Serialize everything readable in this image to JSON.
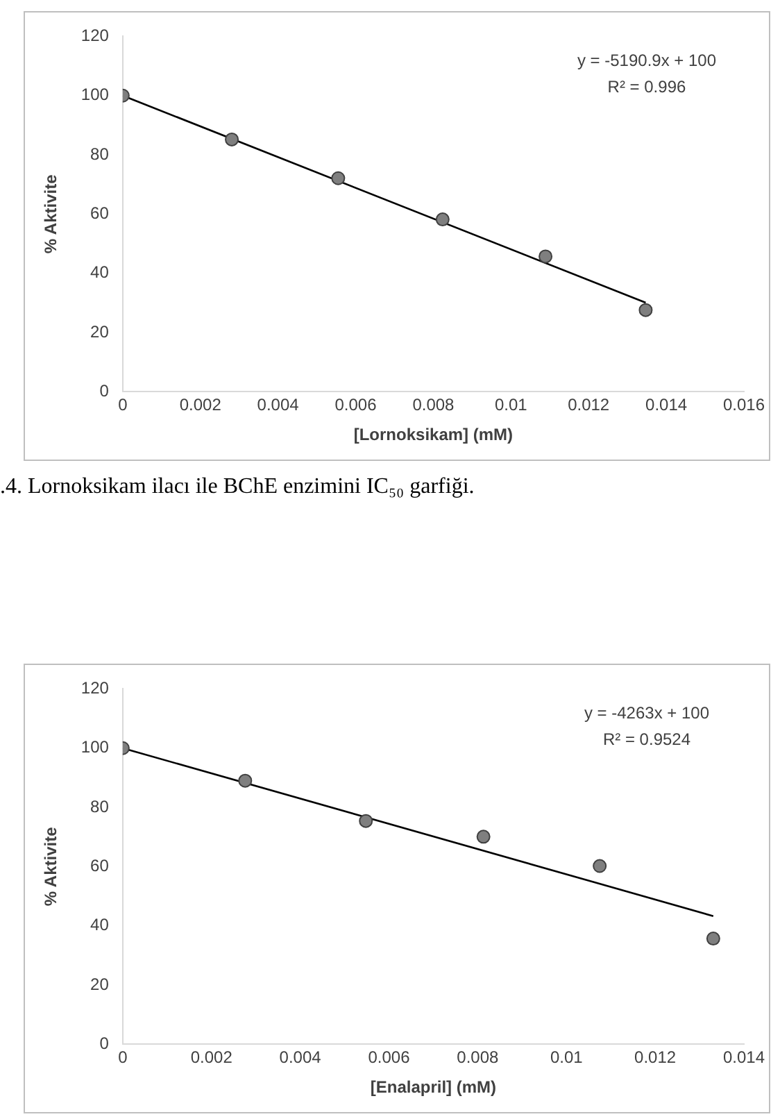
{
  "chart_data": [
    {
      "type": "scatter",
      "xlabel": "[Lornoksikam] (mM)",
      "ylabel": "% Aktivite",
      "xlim": [
        0,
        0.016
      ],
      "xticks": [
        0,
        0.002,
        0.004,
        0.006,
        0.008,
        0.01,
        0.012,
        0.014,
        0.016
      ],
      "ylim": [
        0,
        120
      ],
      "yticks": [
        0,
        20,
        40,
        60,
        80,
        100,
        120
      ],
      "grid": false,
      "legend": false,
      "marker": "circle",
      "series": [
        {
          "type": "scatter",
          "color": "#7f7f7f",
          "x": [
            0,
            0.00281,
            0.00555,
            0.00824,
            0.01089,
            0.01347
          ],
          "values": [
            100,
            85.2,
            72.1,
            58.2,
            45.7,
            27.6
          ]
        },
        {
          "type": "line",
          "color": "#000000",
          "marker": "none",
          "line_style": "solid",
          "x": [
            0,
            0.01347
          ],
          "values": [
            100,
            30.1
          ]
        }
      ],
      "annotations": [
        "y = -5190.9x + 100",
        "R² = 0.996"
      ]
    },
    {
      "type": "other",
      "annotations": [
        ".4. Lornoksikam ilacı ile BChE enzimini IC₅₀ garfiği."
      ]
    },
    {
      "type": "scatter",
      "xlabel": "[Enalapril] (mM)",
      "ylabel": "% Aktivite",
      "xlim": [
        0,
        0.014
      ],
      "xticks": [
        0,
        0.002,
        0.004,
        0.006,
        0.008,
        0.01,
        0.012,
        0.014
      ],
      "ylim": [
        0,
        120
      ],
      "yticks": [
        0,
        20,
        40,
        60,
        80,
        100,
        120
      ],
      "grid": false,
      "legend": false,
      "marker": "circle",
      "series": [
        {
          "type": "scatter",
          "color": "#7f7f7f",
          "x": [
            0,
            0.00276,
            0.00548,
            0.00813,
            0.01075,
            0.01331
          ],
          "values": [
            100,
            89.0,
            75.4,
            70.1,
            60.2,
            35.7
          ]
        },
        {
          "type": "line",
          "color": "#000000",
          "marker": "none",
          "line_style": "solid",
          "x": [
            0,
            0.01331
          ],
          "values": [
            100,
            43.3
          ]
        }
      ],
      "annotations": [
        "y = -4263x + 100",
        "R² = 0.9524"
      ]
    }
  ]
}
